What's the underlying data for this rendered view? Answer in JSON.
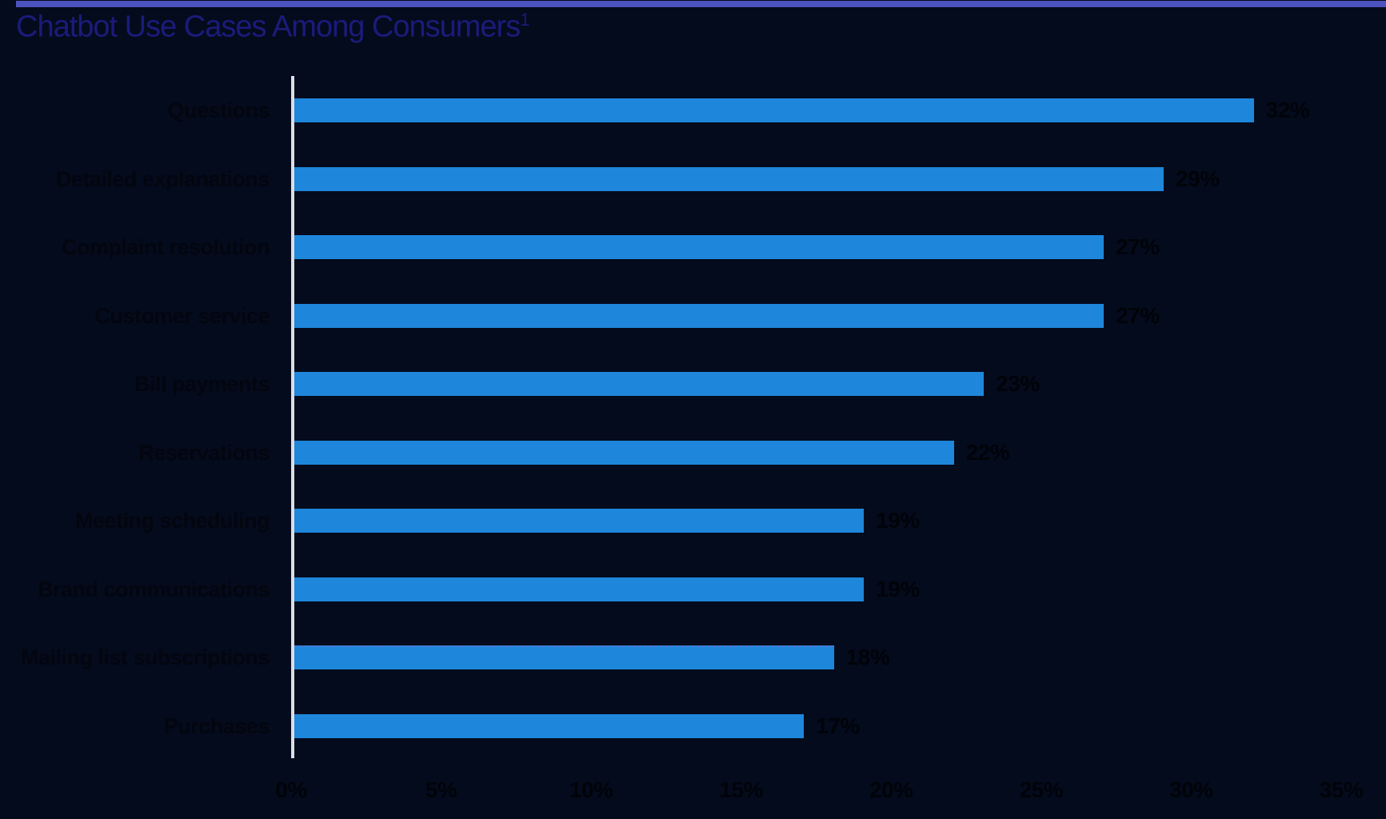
{
  "page": {
    "background_color": "#040B1D",
    "accent_bar_color": "#4C53BE"
  },
  "title": {
    "text": "Chatbot Use Cases Among Consumers",
    "superscript": "1",
    "color": "#1B1B7B"
  },
  "chart_data": {
    "type": "bar",
    "orientation": "horizontal",
    "title": "Chatbot Use Cases Among Consumers¹",
    "categories": [
      "Questions",
      "Detailed explanations",
      "Complaint resolution",
      "Customer service",
      "Bill payments",
      "Reservations",
      "Meeting scheduling",
      "Brand communications",
      "Mailing list subscriptions",
      "Purchases"
    ],
    "values": [
      32,
      29,
      27,
      27,
      23,
      22,
      19,
      19,
      18,
      17
    ],
    "value_labels": [
      "32%",
      "29%",
      "27%",
      "27%",
      "23%",
      "22%",
      "19%",
      "19%",
      "18%",
      "17%"
    ],
    "x_tick_labels": [
      "0%",
      "5%",
      "10%",
      "15%",
      "20%",
      "25%",
      "30%",
      "35%"
    ],
    "x_tick_values": [
      0,
      5,
      10,
      15,
      20,
      25,
      30,
      35
    ],
    "xlim": [
      0,
      35
    ],
    "bar_color": "#1E87DB",
    "axis_line_color": "#DCDEE3",
    "text_color": "#03060F",
    "grid": false,
    "legend": false,
    "dotted_outline_index": 8
  }
}
